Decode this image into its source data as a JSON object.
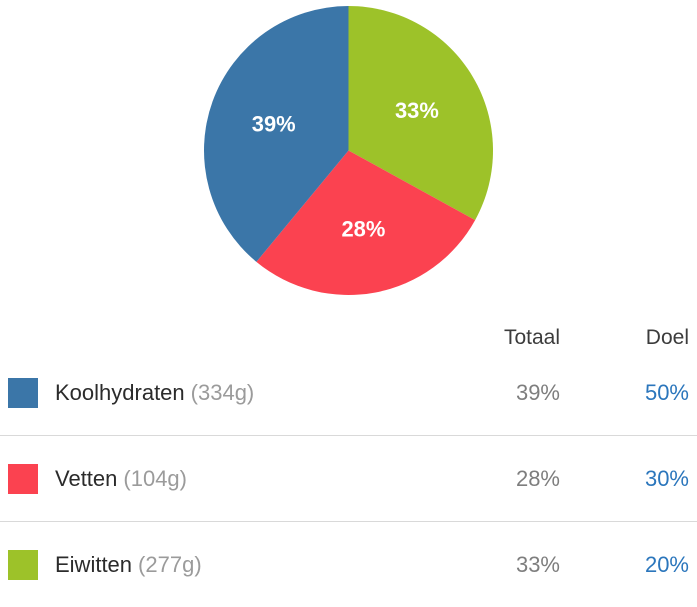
{
  "colors": {
    "carbs_blue": "#3B76A8",
    "fat_red": "#FB4250",
    "protein_green": "#9DC229",
    "goal_link_blue": "#2B76BC",
    "amount_gray": "#9B9B9B",
    "value_gray": "#7E7E7E",
    "header_text": "#3C3C3C",
    "divider": "#D9D9D9",
    "background": "#FFFFFF",
    "pie_label_white": "#FFFFFF"
  },
  "table": {
    "headers": {
      "total": "Totaal",
      "goal": "Doel"
    },
    "rows": [
      {
        "name": "Koolhydraten",
        "amount": "(334g)",
        "total": "39%",
        "goal": "50%",
        "color": "#3B76A8"
      },
      {
        "name": "Vetten",
        "amount": "(104g)",
        "total": "28%",
        "goal": "30%",
        "color": "#FB4250"
      },
      {
        "name": "Eiwitten",
        "amount": "(277g)",
        "total": "33%",
        "goal": "20%",
        "color": "#9DC229"
      }
    ]
  },
  "chart_data": {
    "type": "pie",
    "title": "",
    "start_angle": "top",
    "direction": "clockwise",
    "labels_inside": true,
    "label_color": "#FFFFFF",
    "legend_position": "table-below",
    "slices": [
      {
        "label": "Eiwitten",
        "value": 33,
        "display": "33%",
        "color": "#9DC229"
      },
      {
        "label": "Vetten",
        "value": 28,
        "display": "28%",
        "color": "#FB4250"
      },
      {
        "label": "Koolhydraten",
        "value": 39,
        "display": "39%",
        "color": "#3B76A8"
      }
    ]
  }
}
